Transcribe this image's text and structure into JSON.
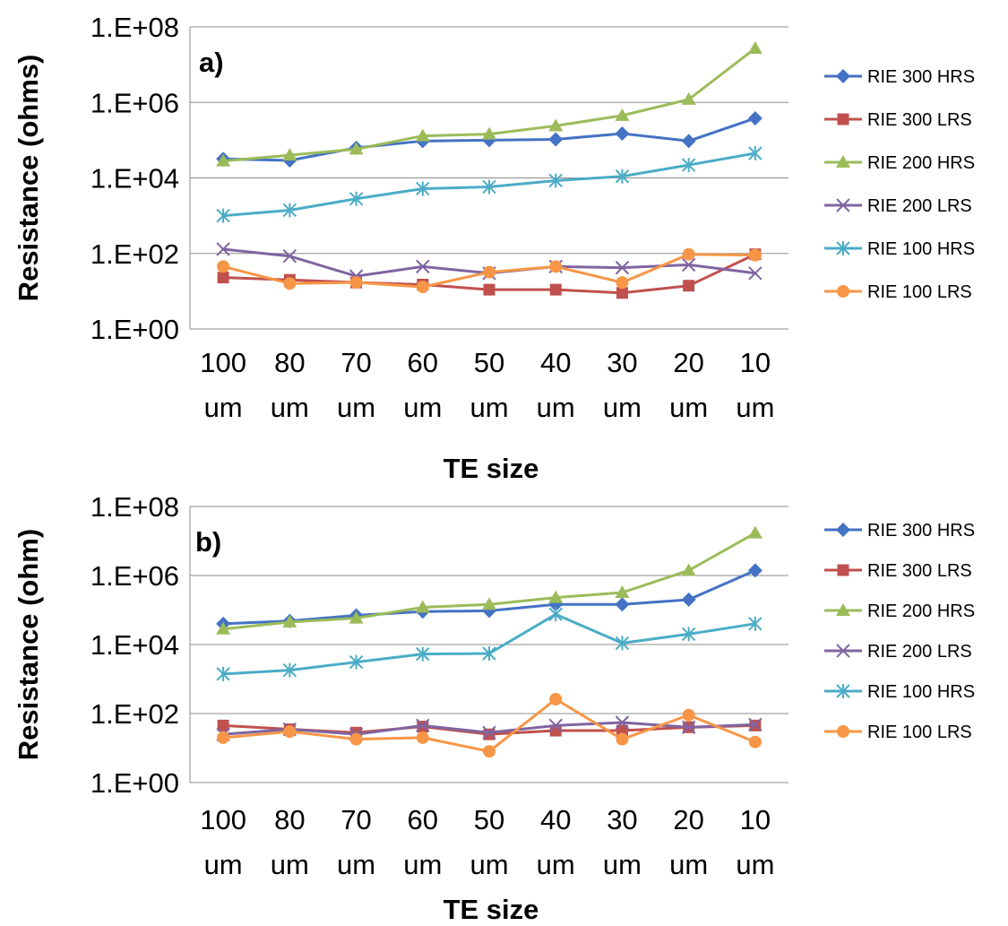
{
  "colors": {
    "RIE 300 HRS": "#4472C4",
    "RIE 300 LRS": "#C0504D",
    "RIE 200 HRS": "#9BBB59",
    "RIE 200 LRS": "#8064A2",
    "RIE 100 HRS": "#4BACC6",
    "RIE 100 LRS": "#F79646"
  },
  "markers": {
    "RIE 300 HRS": "diamond",
    "RIE 300 LRS": "square",
    "RIE 200 HRS": "triangle",
    "RIE 200 LRS": "x",
    "RIE 100 HRS": "star",
    "RIE 100 LRS": "circle"
  },
  "chart_data": [
    {
      "type": "line",
      "panel_label": "a)",
      "ylabel": "Resistance (ohms)",
      "xlabel": "TE size",
      "yscale": "log",
      "ylim": [
        1,
        100000000
      ],
      "yticks": [
        "1.E+00",
        "1.E+02",
        "1.E+04",
        "1.E+06",
        "1.E+08"
      ],
      "grid": true,
      "legend_position": "right",
      "categories": [
        [
          "100",
          "um"
        ],
        [
          "80",
          "um"
        ],
        [
          "70",
          "um"
        ],
        [
          "60",
          "um"
        ],
        [
          "50",
          "um"
        ],
        [
          "40",
          "um"
        ],
        [
          "30",
          "um"
        ],
        [
          "20",
          "um"
        ],
        [
          "10",
          "um"
        ]
      ],
      "series": [
        {
          "name": "RIE 300 HRS",
          "values": [
            32000,
            29000,
            63000,
            95000,
            100000,
            105000,
            150000,
            95000,
            380000
          ]
        },
        {
          "name": "RIE 300 LRS",
          "values": [
            23,
            20,
            17,
            15,
            11,
            11,
            9,
            14,
            95
          ]
        },
        {
          "name": "RIE 200 HRS",
          "values": [
            28000,
            40000,
            58000,
            130000,
            145000,
            240000,
            450000,
            1200000,
            27000000
          ]
        },
        {
          "name": "RIE 200 LRS",
          "values": [
            130,
            85,
            25,
            45,
            30,
            45,
            42,
            50,
            30
          ]
        },
        {
          "name": "RIE 100 HRS",
          "values": [
            1000,
            1400,
            2800,
            5200,
            5800,
            8500,
            11000,
            22000,
            45000
          ]
        },
        {
          "name": "RIE 100 LRS",
          "values": [
            45,
            16,
            17,
            13,
            32,
            45,
            17,
            95,
            90
          ]
        }
      ]
    },
    {
      "type": "line",
      "panel_label": "b)",
      "ylabel": "Resistance (ohm)",
      "xlabel": "TE size",
      "yscale": "log",
      "ylim": [
        1,
        100000000
      ],
      "yticks": [
        "1.E+00",
        "1.E+02",
        "1.E+04",
        "1.E+06",
        "1.E+08"
      ],
      "grid": true,
      "legend_position": "right",
      "categories": [
        [
          "100",
          "um"
        ],
        [
          "80",
          "um"
        ],
        [
          "70",
          "um"
        ],
        [
          "60",
          "um"
        ],
        [
          "50",
          "um"
        ],
        [
          "40",
          "um"
        ],
        [
          "30",
          "um"
        ],
        [
          "20",
          "um"
        ],
        [
          "10",
          "um"
        ]
      ],
      "series": [
        {
          "name": "RIE 300 HRS",
          "values": [
            40000,
            48000,
            70000,
            90000,
            95000,
            145000,
            145000,
            200000,
            1400000
          ]
        },
        {
          "name": "RIE 300 LRS",
          "values": [
            45,
            35,
            28,
            42,
            25,
            32,
            32,
            40,
            45
          ]
        },
        {
          "name": "RIE 200 HRS",
          "values": [
            28000,
            45000,
            58000,
            120000,
            145000,
            230000,
            320000,
            1400000,
            17000000
          ]
        },
        {
          "name": "RIE 200 LRS",
          "values": [
            25,
            35,
            25,
            45,
            28,
            45,
            55,
            40,
            48
          ]
        },
        {
          "name": "RIE 100 HRS",
          "values": [
            1400,
            1800,
            3100,
            5300,
            5500,
            75000,
            11000,
            20000,
            40000
          ]
        },
        {
          "name": "RIE 100 LRS",
          "values": [
            20,
            30,
            18,
            20,
            8,
            260,
            18,
            90,
            15
          ]
        }
      ]
    }
  ]
}
